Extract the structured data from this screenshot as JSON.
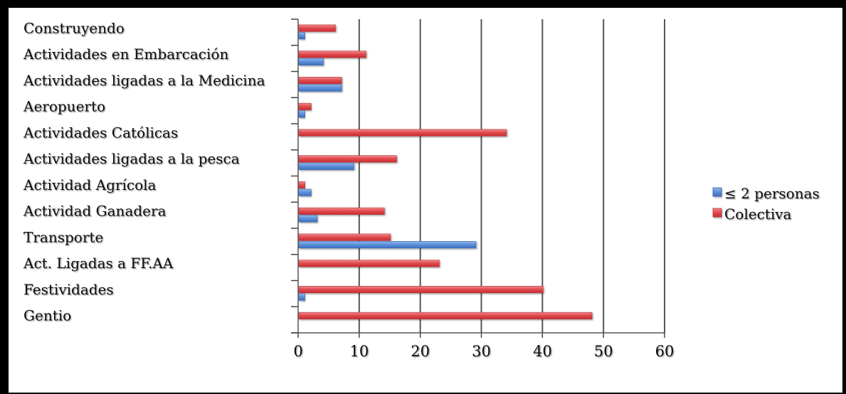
{
  "chart_data": {
    "type": "bar",
    "orientation": "horizontal",
    "title": "",
    "xlabel": "",
    "ylabel": "",
    "categories": [
      "Construyendo",
      "Actividades en Embarcación",
      "Actividades ligadas a la Medicina",
      "Aeropuerto",
      "Actividades Católicas",
      "Actividades ligadas a la pesca",
      "Actividad Agrícola",
      "Actividad Ganadera",
      "Transporte",
      "Act. Ligadas a FF.AA",
      "Festividades",
      "Gentio"
    ],
    "series": [
      {
        "name": "≤ 2 personas",
        "color": "#5b8fd8",
        "values": [
          1,
          4,
          7,
          1,
          0,
          9,
          2,
          3,
          29,
          0,
          1,
          0
        ]
      },
      {
        "name": "Colectiva",
        "color": "#e0474c",
        "values": [
          6,
          11,
          7,
          2,
          34,
          16,
          1,
          14,
          15,
          23,
          40,
          48
        ]
      }
    ],
    "xlim": [
      0,
      60
    ],
    "xticks": [
      "0",
      "10",
      "20",
      "30",
      "40",
      "50",
      "60"
    ],
    "grid": "vertical major gridlines",
    "legend_position": "right"
  }
}
